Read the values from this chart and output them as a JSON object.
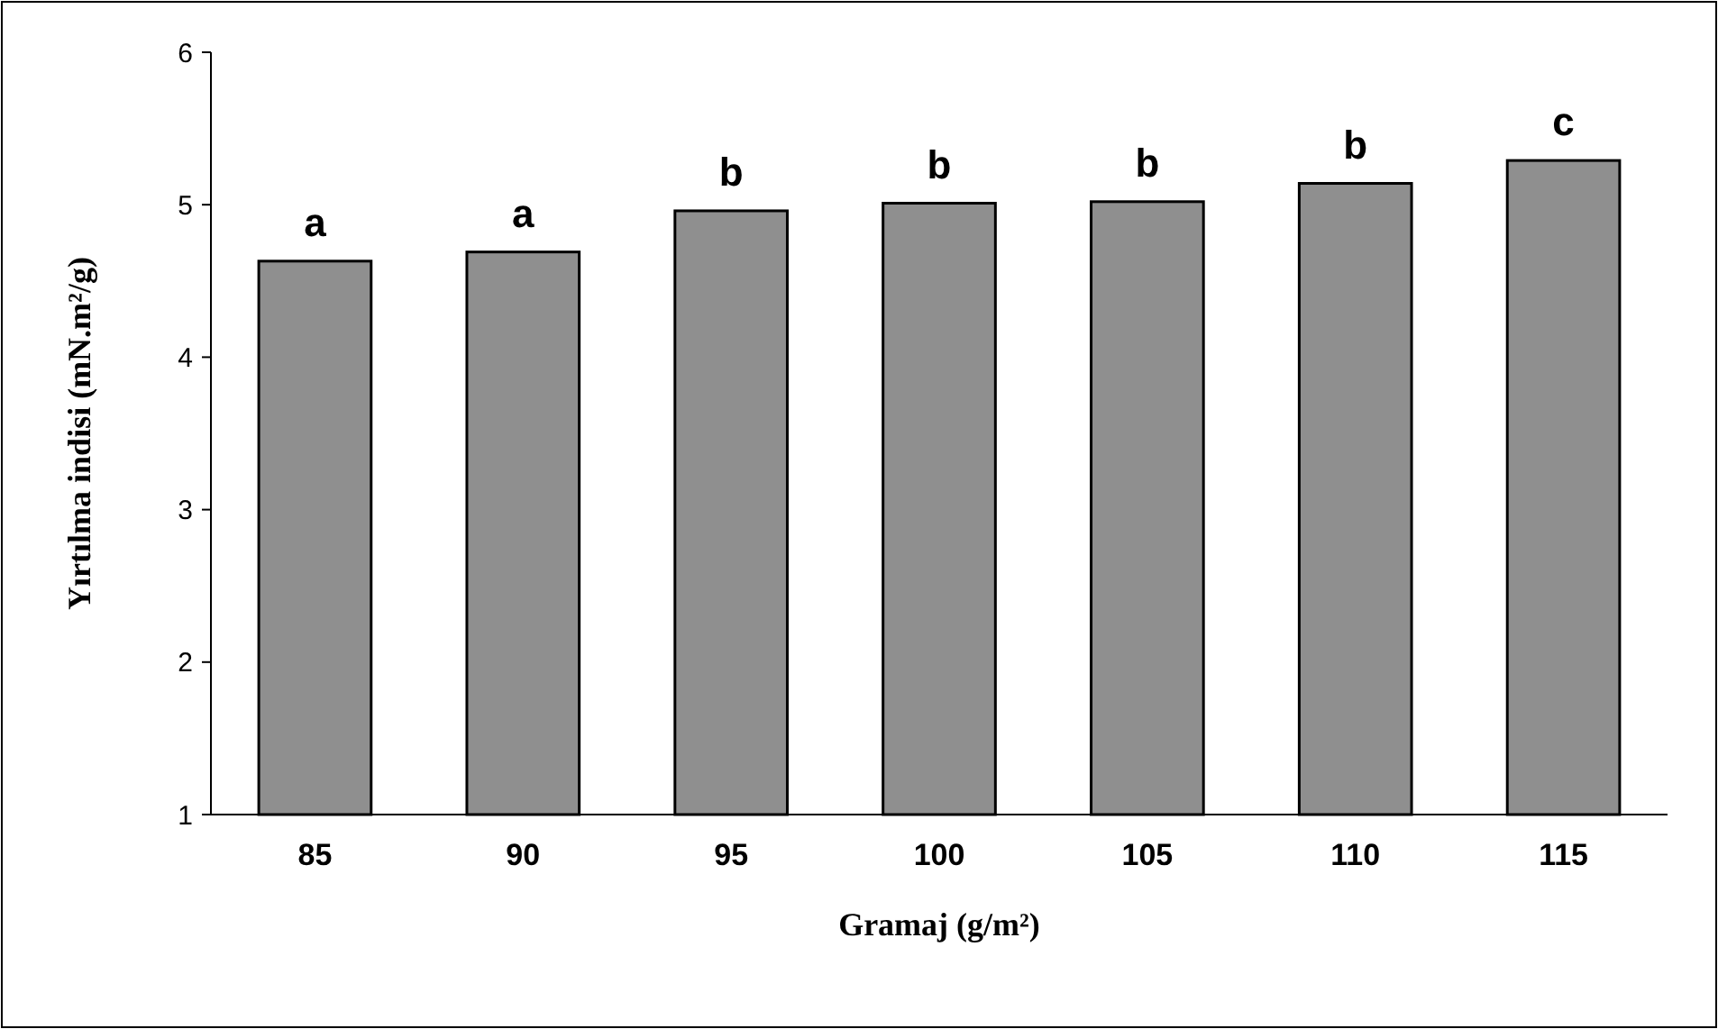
{
  "chart_data": {
    "type": "bar",
    "xlabel": "Gramaj (g/m²)",
    "ylabel": "Yırtılma indisi (mN.m²/g)",
    "categories": [
      "85",
      "90",
      "95",
      "100",
      "105",
      "110",
      "115"
    ],
    "values": [
      4.63,
      4.69,
      4.96,
      5.01,
      5.02,
      5.14,
      5.29
    ],
    "color": "#8f8f8f",
    "ylim": [
      1,
      6
    ],
    "yticks": [
      1,
      2,
      3,
      4,
      5,
      6
    ],
    "grid": false,
    "annotations": [
      {
        "text": "a",
        "x": "85",
        "y": 4.63
      },
      {
        "text": "a",
        "x": "90",
        "y": 4.69
      },
      {
        "text": "b",
        "x": "95",
        "y": 4.96
      },
      {
        "text": "b",
        "x": "100",
        "y": 5.01
      },
      {
        "text": "b",
        "x": "105",
        "y": 5.02
      },
      {
        "text": "b",
        "x": "110",
        "y": 5.14
      },
      {
        "text": "c",
        "x": "115",
        "y": 5.29
      }
    ]
  }
}
